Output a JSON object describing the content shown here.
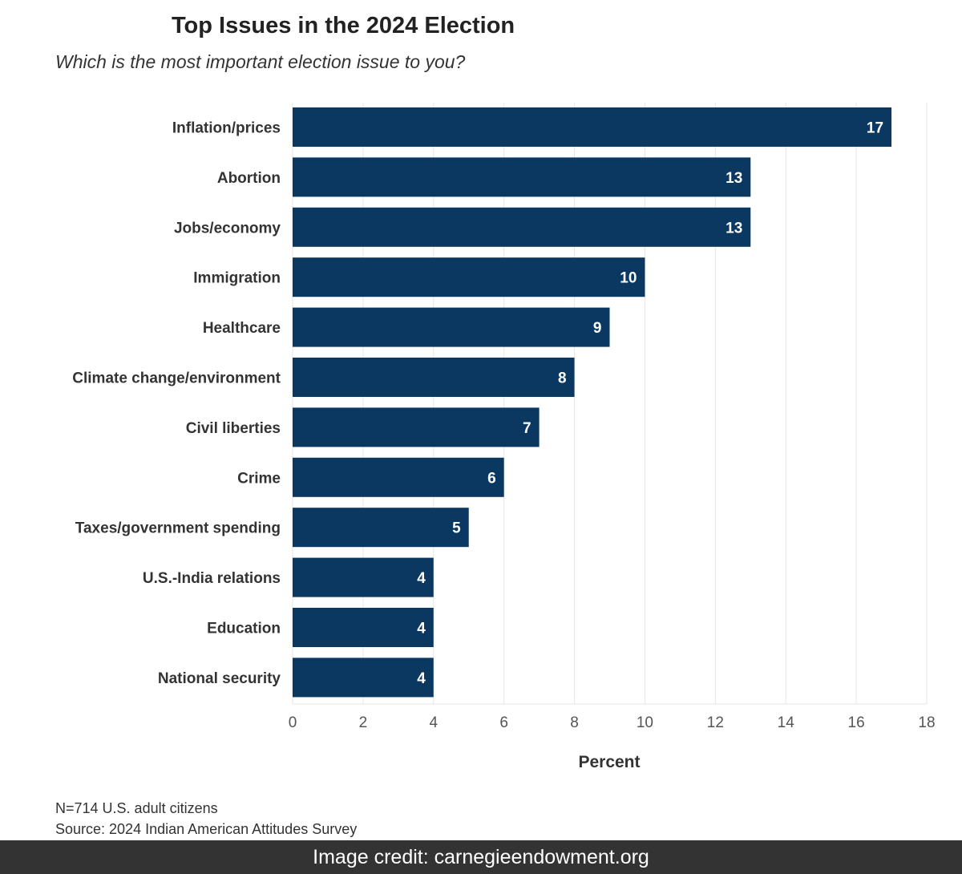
{
  "chart_data": {
    "type": "bar",
    "orientation": "horizontal",
    "title": "Top Issues in the 2024 Election",
    "subtitle": "Which is the most important election issue to you?",
    "categories": [
      "Inflation/prices",
      "Abortion",
      "Jobs/economy",
      "Immigration",
      "Healthcare",
      "Climate change/environment",
      "Civil liberties",
      "Crime",
      "Taxes/government spending",
      "U.S.-India relations",
      "Education",
      "National security"
    ],
    "values": [
      17,
      13,
      13,
      10,
      9,
      8,
      7,
      6,
      5,
      4,
      4,
      4
    ],
    "xlabel": "Percent",
    "ylabel": "",
    "xlim": [
      0,
      18
    ],
    "xticks": [
      0,
      2,
      4,
      6,
      8,
      10,
      12,
      14,
      16,
      18
    ],
    "grid": "vertical",
    "bar_color": "#0a3861",
    "data_labels": true
  },
  "notes": {
    "sample": "N=714 U.S. adult citizens",
    "source": "Source: 2024 Indian American Attitudes Survey"
  },
  "credit": "Image credit: carnegieendowment.org"
}
